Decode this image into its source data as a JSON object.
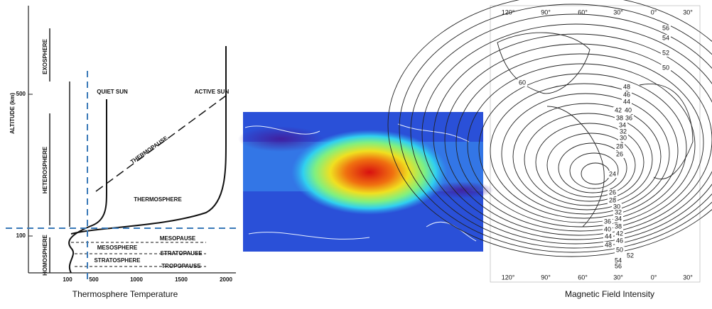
{
  "panels": [
    {
      "caption": "Thermosphere Temperature",
      "axis_label": "ALTITUDE (km)",
      "y_ticks": [
        "500",
        "100"
      ],
      "x_ticks": [
        "100",
        "500",
        "1000",
        "1500",
        "2000"
      ],
      "layer_labels": [
        "EXOSPHERE",
        "HETEROSPHERE",
        "HOMOSPHERE"
      ],
      "curve_labels": [
        "QUIET SUN",
        "ACTIVE SUN",
        "THERMOPAUSE",
        "THERMOSPHERE"
      ],
      "boundary_labels": [
        "MESOPAUSE",
        "MESOSPHERE",
        "STRATOPAUSE",
        "STRATOSPHERE",
        "TROPOPAUSE"
      ]
    },
    {
      "caption": "Magnetic Field Intensity",
      "top_ticks": [
        "120°",
        "90°",
        "60°",
        "30°",
        "0°",
        "30°"
      ],
      "bottom_ticks": [
        "120°",
        "90°",
        "60°",
        "30°",
        "0°",
        "30°"
      ],
      "contour_labels": [
        "56",
        "54",
        "52",
        "50",
        "60",
        "48",
        "46",
        "44",
        "42",
        "40",
        "38",
        "36",
        "34",
        "32",
        "30",
        "28",
        "26",
        "24",
        "26",
        "28",
        "30",
        "32",
        "34",
        "36",
        "38",
        "40",
        "42",
        "44",
        "46",
        "48",
        "50",
        "52",
        "54",
        "56"
      ]
    }
  ]
}
